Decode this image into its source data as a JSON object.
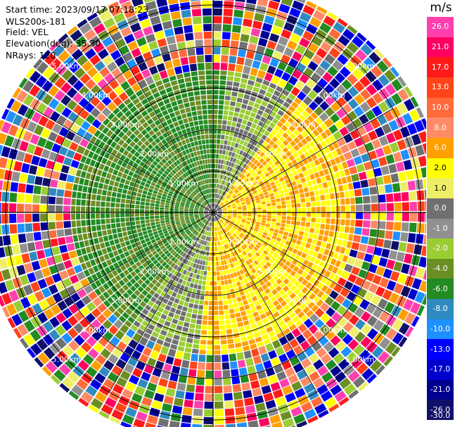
{
  "header": {
    "start_time": "Start time: 2023/09/17 07:18:23",
    "instrument": "WLS200s-181",
    "field": "Field: VEL",
    "elevation": "Elevation(deg): 35.30",
    "nrays": "NRays: 120"
  },
  "chart_data": {
    "type": "heatmap",
    "projection": "polar-ppi",
    "field": "VEL",
    "unit": "m/s",
    "range_rings_km": [
      1,
      2,
      3,
      4,
      5
    ],
    "ring_label": "km",
    "n_rays": 120,
    "max_range_km": 5.6,
    "colorbar": {
      "unit": "m/s",
      "ticks": [
        "26.0",
        "21.0",
        "17.0",
        "13.0",
        "10.0",
        "8.0",
        "6.0",
        "2.0",
        "1.0",
        "0.0",
        "-1.0",
        "-2.0",
        "-4.0",
        "-6.0",
        "-8.0",
        "-10.0",
        "-13.0",
        "-17.0",
        "-21.0",
        "-26.0",
        "-30.0"
      ],
      "colors": [
        "#ff3fae",
        "#ff0060",
        "#ff1a1a",
        "#ff4418",
        "#ff6b3a",
        "#ff8a66",
        "#ff9f00",
        "#ffff00",
        "#eeee66",
        "#707070",
        "#909090",
        "#9acd32",
        "#6b8e23",
        "#228b22",
        "#2e8bc0",
        "#1e90ff",
        "#0000ff",
        "#0000cd",
        "#000090",
        "#10106a"
      ]
    },
    "pattern": {
      "receding_sector_color": "#ffff00",
      "approaching_sector_color": "#228b22",
      "valid_range_km": 3.4
    }
  }
}
